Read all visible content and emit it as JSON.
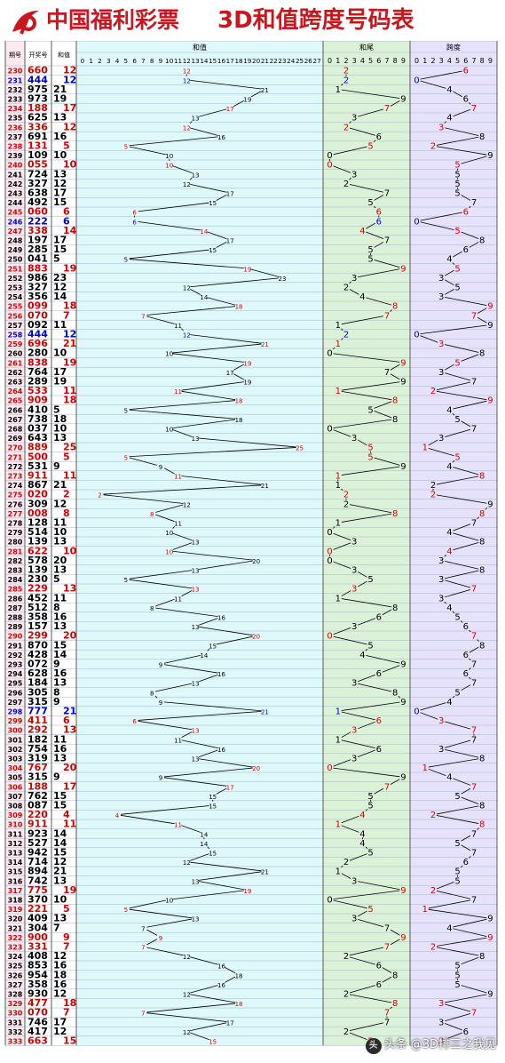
{
  "header": {
    "brand": "中国福利彩票",
    "title": "3D和值跨度号码表"
  },
  "watermark": {
    "text": "头条 @3D排三之我见"
  },
  "colors": {
    "red": "#d40000",
    "blue": "#0000cc",
    "black": "#000000",
    "period_bg": "#fde9f0",
    "number_bg": "#ffffff",
    "sum_bg": "#dff8fa",
    "tail_bg": "#dcf2d8",
    "span_bg": "#e7e2fb",
    "grid": "#9fb7cf",
    "brand_red": "#c8171e"
  },
  "chart_data": {
    "type": "table",
    "columns": [
      "期号",
      "开奖号",
      "和值"
    ],
    "sections": [
      {
        "key": "sum",
        "label": "和值",
        "ticks": [
          "0",
          "1",
          "2",
          "3",
          "4",
          "5",
          "6",
          "7",
          "8",
          "9",
          "10",
          "11",
          "12",
          "13",
          "14",
          "15",
          "16",
          "17",
          "18",
          "19",
          "20",
          "21",
          "22",
          "23",
          "24",
          "25",
          "26",
          "27"
        ]
      },
      {
        "key": "tail",
        "label": "和尾",
        "ticks": [
          "0",
          "1",
          "2",
          "3",
          "4",
          "5",
          "6",
          "7",
          "8",
          "9"
        ]
      },
      {
        "key": "span",
        "label": "跨度",
        "ticks": [
          "0",
          "1",
          "2",
          "3",
          "4",
          "5",
          "6",
          "7",
          "8",
          "9"
        ]
      }
    ],
    "rows": [
      {
        "period": "230",
        "number": "660",
        "sum": 12,
        "tail": 2,
        "span": 6,
        "color": "red"
      },
      {
        "period": "231",
        "number": "444",
        "sum": 12,
        "tail": 2,
        "span": 0,
        "color": "blue"
      },
      {
        "period": "232",
        "number": "975",
        "sum": 21,
        "tail": 1,
        "span": 4,
        "color": "black"
      },
      {
        "period": "233",
        "number": "973",
        "sum": 19,
        "tail": 9,
        "span": 6,
        "color": "black"
      },
      {
        "period": "234",
        "number": "188",
        "sum": 17,
        "tail": 7,
        "span": 7,
        "color": "red"
      },
      {
        "period": "235",
        "number": "625",
        "sum": 13,
        "tail": 3,
        "span": 4,
        "color": "black"
      },
      {
        "period": "236",
        "number": "336",
        "sum": 12,
        "tail": 2,
        "span": 3,
        "color": "red"
      },
      {
        "period": "237",
        "number": "691",
        "sum": 16,
        "tail": 6,
        "span": 8,
        "color": "black"
      },
      {
        "period": "238",
        "number": "131",
        "sum": 5,
        "tail": 5,
        "span": 2,
        "color": "red"
      },
      {
        "period": "239",
        "number": "109",
        "sum": 10,
        "tail": 0,
        "span": 9,
        "color": "black"
      },
      {
        "period": "240",
        "number": "055",
        "sum": 10,
        "tail": 0,
        "span": 5,
        "color": "red"
      },
      {
        "period": "241",
        "number": "724",
        "sum": 13,
        "tail": 3,
        "span": 5,
        "color": "black"
      },
      {
        "period": "242",
        "number": "327",
        "sum": 12,
        "tail": 2,
        "span": 5,
        "color": "black"
      },
      {
        "period": "243",
        "number": "638",
        "sum": 17,
        "tail": 7,
        "span": 5,
        "color": "black"
      },
      {
        "period": "244",
        "number": "492",
        "sum": 15,
        "tail": 5,
        "span": 7,
        "color": "black"
      },
      {
        "period": "245",
        "number": "060",
        "sum": 6,
        "tail": 6,
        "span": 6,
        "color": "red"
      },
      {
        "period": "246",
        "number": "222",
        "sum": 6,
        "tail": 6,
        "span": 0,
        "color": "blue"
      },
      {
        "period": "247",
        "number": "338",
        "sum": 14,
        "tail": 4,
        "span": 5,
        "color": "red"
      },
      {
        "period": "248",
        "number": "197",
        "sum": 17,
        "tail": 7,
        "span": 8,
        "color": "black"
      },
      {
        "period": "249",
        "number": "285",
        "sum": 15,
        "tail": 5,
        "span": 6,
        "color": "black"
      },
      {
        "period": "250",
        "number": "041",
        "sum": 5,
        "tail": 5,
        "span": 4,
        "color": "black"
      },
      {
        "period": "251",
        "number": "883",
        "sum": 19,
        "tail": 9,
        "span": 5,
        "color": "red"
      },
      {
        "period": "252",
        "number": "986",
        "sum": 23,
        "tail": 3,
        "span": 3,
        "color": "black"
      },
      {
        "period": "253",
        "number": "327",
        "sum": 12,
        "tail": 2,
        "span": 5,
        "color": "black"
      },
      {
        "period": "254",
        "number": "356",
        "sum": 14,
        "tail": 4,
        "span": 3,
        "color": "black"
      },
      {
        "period": "255",
        "number": "099",
        "sum": 18,
        "tail": 8,
        "span": 9,
        "color": "red"
      },
      {
        "period": "256",
        "number": "070",
        "sum": 7,
        "tail": 7,
        "span": 7,
        "color": "red"
      },
      {
        "period": "257",
        "number": "092",
        "sum": 11,
        "tail": 1,
        "span": 9,
        "color": "black"
      },
      {
        "period": "258",
        "number": "444",
        "sum": 12,
        "tail": 2,
        "span": 0,
        "color": "blue"
      },
      {
        "period": "259",
        "number": "696",
        "sum": 21,
        "tail": 1,
        "span": 3,
        "color": "red"
      },
      {
        "period": "260",
        "number": "280",
        "sum": 10,
        "tail": 0,
        "span": 8,
        "color": "black"
      },
      {
        "period": "261",
        "number": "838",
        "sum": 19,
        "tail": 9,
        "span": 5,
        "color": "red"
      },
      {
        "period": "262",
        "number": "764",
        "sum": 17,
        "tail": 7,
        "span": 3,
        "color": "black"
      },
      {
        "period": "263",
        "number": "289",
        "sum": 19,
        "tail": 9,
        "span": 7,
        "color": "black"
      },
      {
        "period": "264",
        "number": "533",
        "sum": 11,
        "tail": 1,
        "span": 2,
        "color": "red"
      },
      {
        "period": "265",
        "number": "909",
        "sum": 18,
        "tail": 8,
        "span": 9,
        "color": "red"
      },
      {
        "period": "266",
        "number": "410",
        "sum": 5,
        "tail": 5,
        "span": 4,
        "color": "black"
      },
      {
        "period": "267",
        "number": "738",
        "sum": 18,
        "tail": 8,
        "span": 5,
        "color": "black"
      },
      {
        "period": "268",
        "number": "037",
        "sum": 10,
        "tail": 0,
        "span": 7,
        "color": "black"
      },
      {
        "period": "269",
        "number": "643",
        "sum": 13,
        "tail": 3,
        "span": 3,
        "color": "black"
      },
      {
        "period": "270",
        "number": "889",
        "sum": 25,
        "tail": 5,
        "span": 1,
        "color": "red"
      },
      {
        "period": "271",
        "number": "500",
        "sum": 5,
        "tail": 5,
        "span": 5,
        "color": "red"
      },
      {
        "period": "272",
        "number": "531",
        "sum": 9,
        "tail": 9,
        "span": 4,
        "color": "black"
      },
      {
        "period": "273",
        "number": "911",
        "sum": 11,
        "tail": 1,
        "span": 8,
        "color": "red"
      },
      {
        "period": "274",
        "number": "867",
        "sum": 21,
        "tail": 1,
        "span": 2,
        "color": "black"
      },
      {
        "period": "275",
        "number": "020",
        "sum": 2,
        "tail": 2,
        "span": 2,
        "color": "red"
      },
      {
        "period": "276",
        "number": "309",
        "sum": 12,
        "tail": 2,
        "span": 9,
        "color": "black"
      },
      {
        "period": "277",
        "number": "008",
        "sum": 8,
        "tail": 8,
        "span": 8,
        "color": "red"
      },
      {
        "period": "278",
        "number": "128",
        "sum": 11,
        "tail": 1,
        "span": 7,
        "color": "black"
      },
      {
        "period": "279",
        "number": "514",
        "sum": 10,
        "tail": 0,
        "span": 4,
        "color": "black"
      },
      {
        "period": "280",
        "number": "139",
        "sum": 13,
        "tail": 3,
        "span": 8,
        "color": "black"
      },
      {
        "period": "281",
        "number": "622",
        "sum": 10,
        "tail": 0,
        "span": 4,
        "color": "red"
      },
      {
        "period": "282",
        "number": "578",
        "sum": 20,
        "tail": 0,
        "span": 3,
        "color": "black"
      },
      {
        "period": "283",
        "number": "139",
        "sum": 13,
        "tail": 3,
        "span": 8,
        "color": "black"
      },
      {
        "period": "284",
        "number": "230",
        "sum": 5,
        "tail": 5,
        "span": 3,
        "color": "black"
      },
      {
        "period": "285",
        "number": "229",
        "sum": 13,
        "tail": 3,
        "span": 7,
        "color": "red"
      },
      {
        "period": "286",
        "number": "452",
        "sum": 11,
        "tail": 1,
        "span": 3,
        "color": "black"
      },
      {
        "period": "287",
        "number": "512",
        "sum": 8,
        "tail": 8,
        "span": 4,
        "color": "black"
      },
      {
        "period": "288",
        "number": "358",
        "sum": 16,
        "tail": 6,
        "span": 5,
        "color": "black"
      },
      {
        "period": "289",
        "number": "157",
        "sum": 13,
        "tail": 3,
        "span": 6,
        "color": "black"
      },
      {
        "period": "290",
        "number": "299",
        "sum": 20,
        "tail": 0,
        "span": 7,
        "color": "red"
      },
      {
        "period": "291",
        "number": "870",
        "sum": 15,
        "tail": 5,
        "span": 8,
        "color": "black"
      },
      {
        "period": "292",
        "number": "428",
        "sum": 14,
        "tail": 4,
        "span": 6,
        "color": "black"
      },
      {
        "period": "293",
        "number": "072",
        "sum": 9,
        "tail": 9,
        "span": 7,
        "color": "black"
      },
      {
        "period": "294",
        "number": "628",
        "sum": 16,
        "tail": 6,
        "span": 6,
        "color": "black"
      },
      {
        "period": "295",
        "number": "184",
        "sum": 13,
        "tail": 3,
        "span": 7,
        "color": "black"
      },
      {
        "period": "296",
        "number": "305",
        "sum": 8,
        "tail": 8,
        "span": 5,
        "color": "black"
      },
      {
        "period": "297",
        "number": "315",
        "sum": 9,
        "tail": 9,
        "span": 4,
        "color": "black"
      },
      {
        "period": "298",
        "number": "777",
        "sum": 21,
        "tail": 1,
        "span": 0,
        "color": "blue"
      },
      {
        "period": "299",
        "number": "411",
        "sum": 6,
        "tail": 6,
        "span": 3,
        "color": "red"
      },
      {
        "period": "300",
        "number": "292",
        "sum": 13,
        "tail": 3,
        "span": 7,
        "color": "red"
      },
      {
        "period": "301",
        "number": "182",
        "sum": 11,
        "tail": 1,
        "span": 7,
        "color": "black"
      },
      {
        "period": "302",
        "number": "754",
        "sum": 16,
        "tail": 6,
        "span": 3,
        "color": "black"
      },
      {
        "period": "303",
        "number": "319",
        "sum": 13,
        "tail": 3,
        "span": 8,
        "color": "black"
      },
      {
        "period": "304",
        "number": "767",
        "sum": 20,
        "tail": 0,
        "span": 1,
        "color": "red"
      },
      {
        "period": "305",
        "number": "315",
        "sum": 9,
        "tail": 9,
        "span": 4,
        "color": "black"
      },
      {
        "period": "306",
        "number": "188",
        "sum": 17,
        "tail": 7,
        "span": 7,
        "color": "red"
      },
      {
        "period": "307",
        "number": "762",
        "sum": 15,
        "tail": 5,
        "span": 5,
        "color": "black"
      },
      {
        "period": "308",
        "number": "087",
        "sum": 15,
        "tail": 5,
        "span": 8,
        "color": "black"
      },
      {
        "period": "309",
        "number": "220",
        "sum": 4,
        "tail": 4,
        "span": 2,
        "color": "red"
      },
      {
        "period": "310",
        "number": "911",
        "sum": 11,
        "tail": 1,
        "span": 8,
        "color": "red"
      },
      {
        "period": "311",
        "number": "923",
        "sum": 14,
        "tail": 4,
        "span": 7,
        "color": "black"
      },
      {
        "period": "312",
        "number": "527",
        "sum": 14,
        "tail": 4,
        "span": 5,
        "color": "black"
      },
      {
        "period": "313",
        "number": "942",
        "sum": 15,
        "tail": 5,
        "span": 7,
        "color": "black"
      },
      {
        "period": "314",
        "number": "714",
        "sum": 12,
        "tail": 2,
        "span": 6,
        "color": "black"
      },
      {
        "period": "315",
        "number": "894",
        "sum": 21,
        "tail": 1,
        "span": 5,
        "color": "black"
      },
      {
        "period": "316",
        "number": "742",
        "sum": 13,
        "tail": 3,
        "span": 5,
        "color": "black"
      },
      {
        "period": "317",
        "number": "775",
        "sum": 19,
        "tail": 9,
        "span": 2,
        "color": "red"
      },
      {
        "period": "318",
        "number": "370",
        "sum": 10,
        "tail": 0,
        "span": 7,
        "color": "black"
      },
      {
        "period": "319",
        "number": "221",
        "sum": 5,
        "tail": 5,
        "span": 1,
        "color": "red"
      },
      {
        "period": "320",
        "number": "409",
        "sum": 13,
        "tail": 3,
        "span": 9,
        "color": "black"
      },
      {
        "period": "321",
        "number": "304",
        "sum": 7,
        "tail": 7,
        "span": 4,
        "color": "black"
      },
      {
        "period": "322",
        "number": "900",
        "sum": 9,
        "tail": 9,
        "span": 9,
        "color": "red"
      },
      {
        "period": "323",
        "number": "331",
        "sum": 7,
        "tail": 7,
        "span": 2,
        "color": "red"
      },
      {
        "period": "324",
        "number": "408",
        "sum": 12,
        "tail": 2,
        "span": 8,
        "color": "black"
      },
      {
        "period": "325",
        "number": "853",
        "sum": 16,
        "tail": 6,
        "span": 5,
        "color": "black"
      },
      {
        "period": "326",
        "number": "954",
        "sum": 18,
        "tail": 8,
        "span": 5,
        "color": "black"
      },
      {
        "period": "327",
        "number": "358",
        "sum": 16,
        "tail": 6,
        "span": 5,
        "color": "black"
      },
      {
        "period": "328",
        "number": "930",
        "sum": 12,
        "tail": 2,
        "span": 9,
        "color": "black"
      },
      {
        "period": "329",
        "number": "477",
        "sum": 18,
        "tail": 8,
        "span": 3,
        "color": "red"
      },
      {
        "period": "330",
        "number": "070",
        "sum": 7,
        "tail": 7,
        "span": 7,
        "color": "red"
      },
      {
        "period": "331",
        "number": "746",
        "sum": 17,
        "tail": 7,
        "span": 3,
        "color": "black"
      },
      {
        "period": "332",
        "number": "417",
        "sum": 12,
        "tail": 2,
        "span": 6,
        "color": "black"
      },
      {
        "period": "333",
        "number": "663",
        "sum": 15,
        "tail": 5,
        "span": 3,
        "color": "red"
      }
    ]
  }
}
